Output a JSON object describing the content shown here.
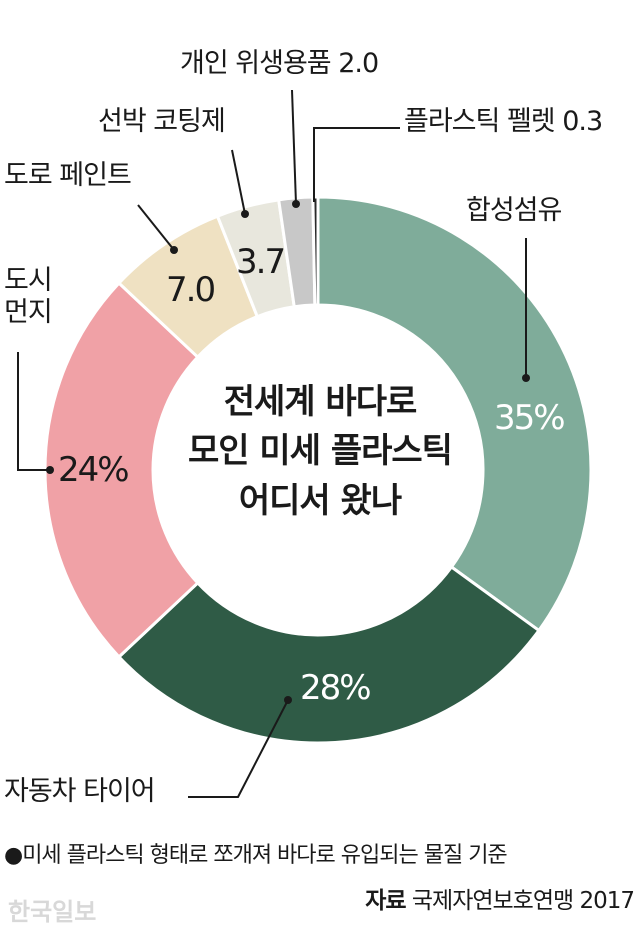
{
  "chart_data": {
    "type": "donut",
    "title": "전세계 바다로\n모인 미세 플라스틱\n어디서 왔나",
    "categories": [
      "합성섬유",
      "자동차 타이어",
      "도시\n먼지",
      "도로 페인트",
      "선박 코팅제",
      "개인 위생용품",
      "플라스틱 펠렛"
    ],
    "values": [
      35,
      28,
      24,
      7.0,
      3.7,
      2.0,
      0.3
    ],
    "value_labels": [
      "35%",
      "28%",
      "24%",
      "7.0",
      "3.7",
      "2.0",
      "0.3"
    ],
    "colors": [
      "#7fac9a",
      "#2f5b46",
      "#f0a1a6",
      "#efe1c2",
      "#e8e7dd",
      "#c8c8c8",
      "#2a2a2a"
    ],
    "note": "●미세 플라스틱 형태로 쪼개져 바다로 유입되는 물질 기준",
    "source_label": "자료",
    "source": "국제자연보호연맹 2017",
    "watermark": "한국일보"
  }
}
